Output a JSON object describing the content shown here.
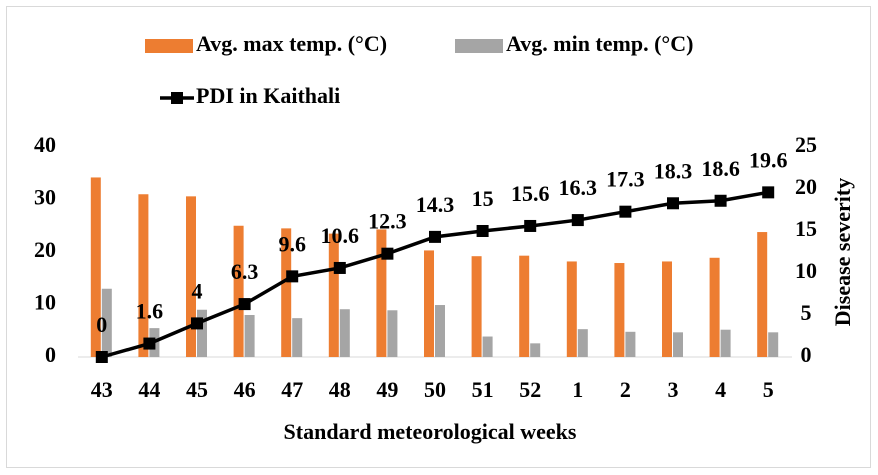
{
  "chart_data": {
    "type": "bar_line",
    "x_label": "Standard meteorological weeks",
    "y2_label": "Disease severity",
    "categories": [
      "43",
      "44",
      "45",
      "46",
      "47",
      "48",
      "49",
      "50",
      "51",
      "52",
      "1",
      "2",
      "3",
      "4",
      "5"
    ],
    "series": [
      {
        "name": "Avg. max temp. (°C)",
        "type": "bar",
        "color": "#ed7d31",
        "values": [
          34.2,
          31,
          30.6,
          25,
          24.5,
          23.5,
          24.3,
          20.3,
          19.2,
          19.3,
          18.2,
          17.9,
          18.2,
          18.9,
          23.8
        ]
      },
      {
        "name": "Avg. min temp. (°C)",
        "type": "bar",
        "color": "#a5a5a5",
        "values": [
          13,
          5.5,
          9,
          8,
          7.4,
          9.1,
          8.9,
          9.9,
          3.9,
          2.6,
          5.3,
          4.8,
          4.7,
          5.2,
          4.7
        ]
      },
      {
        "name": "PDI in Kaithali",
        "type": "line",
        "axis": "y2",
        "color": "#000000",
        "values": [
          0,
          1.6,
          4,
          6.3,
          9.6,
          10.6,
          12.3,
          14.3,
          15,
          15.6,
          16.3,
          17.3,
          18.3,
          18.6,
          19.6
        ]
      }
    ],
    "ylim": [
      0,
      40
    ],
    "yticks": [
      0,
      10,
      20,
      30,
      40
    ],
    "y2lim": [
      0,
      25
    ],
    "y2ticks": [
      0,
      5,
      10,
      15,
      20,
      25
    ],
    "grid": false,
    "legend": "top"
  }
}
